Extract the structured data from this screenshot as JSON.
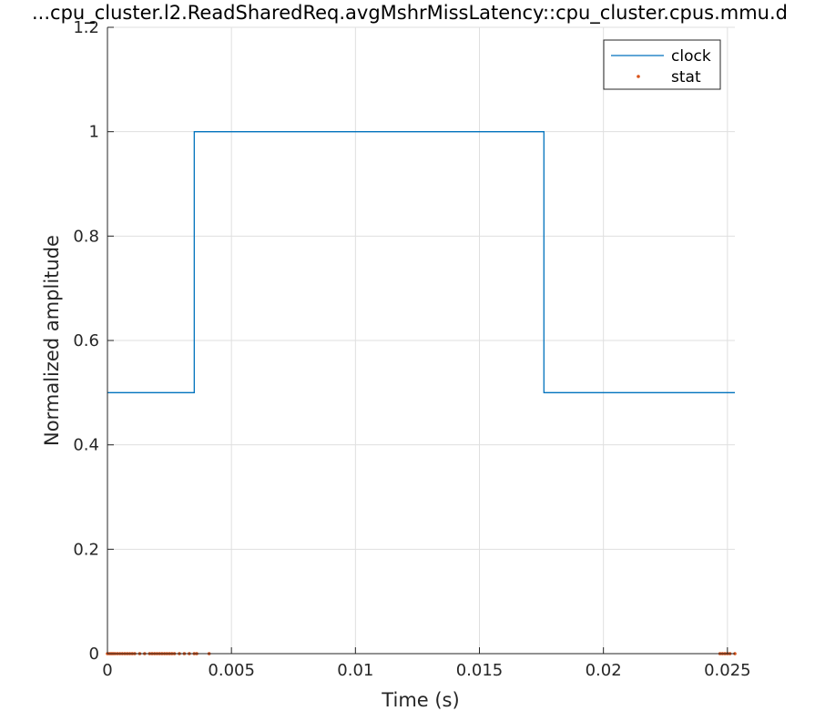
{
  "chart_data": {
    "type": "line",
    "title": "...cpu_cluster.l2.ReadSharedReq.avgMshrMissLatency::cpu_cluster.cpus.mmu.d",
    "xlabel": "Time (s)",
    "ylabel": "Normalized amplitude",
    "xlim": [
      0,
      0.0253
    ],
    "ylim": [
      0,
      1.2
    ],
    "xticks": [
      0,
      0.005,
      0.01,
      0.015,
      0.02,
      0.025
    ],
    "xtick_labels": [
      "0",
      "0.005",
      "0.01",
      "0.015",
      "0.02",
      "0.025"
    ],
    "yticks": [
      0,
      0.2,
      0.4,
      0.6,
      0.8,
      1,
      1.2
    ],
    "ytick_labels": [
      "0",
      "0.2",
      "0.4",
      "0.6",
      "0.8",
      "1",
      "1.2"
    ],
    "grid": true,
    "legend_position": "top-right",
    "series": [
      {
        "name": "clock",
        "style": "line",
        "color": "#0072bd",
        "x": [
          0,
          0.0035,
          0.0035,
          0.0176,
          0.0176,
          0.0253
        ],
        "y": [
          0.5,
          0.5,
          1,
          1,
          0.5,
          0.5
        ]
      },
      {
        "name": "stat",
        "style": "marker",
        "color": "#d95319",
        "x": [
          0,
          8e-05,
          0.00015,
          0.00022,
          0.0003,
          0.0004,
          0.0005,
          0.0006,
          0.0007,
          0.0008,
          0.0009,
          0.001,
          0.0011,
          0.0013,
          0.0015,
          0.0017,
          0.0018,
          0.0019,
          0.002,
          0.0021,
          0.0022,
          0.0023,
          0.0024,
          0.0025,
          0.0026,
          0.0027,
          0.0029,
          0.0031,
          0.0033,
          0.0035,
          0.0036,
          0.0041,
          0.0247,
          0.0248,
          0.0249,
          0.025,
          0.0251,
          0.0253
        ],
        "y": [
          0,
          0,
          0,
          0,
          0,
          0,
          0,
          0,
          0,
          0,
          0,
          0,
          0,
          0,
          0,
          0,
          0,
          0,
          0,
          0,
          0,
          0,
          0,
          0,
          0,
          0,
          0,
          0,
          0,
          0,
          0,
          0,
          0,
          0,
          0,
          0,
          0,
          0
        ]
      }
    ]
  }
}
